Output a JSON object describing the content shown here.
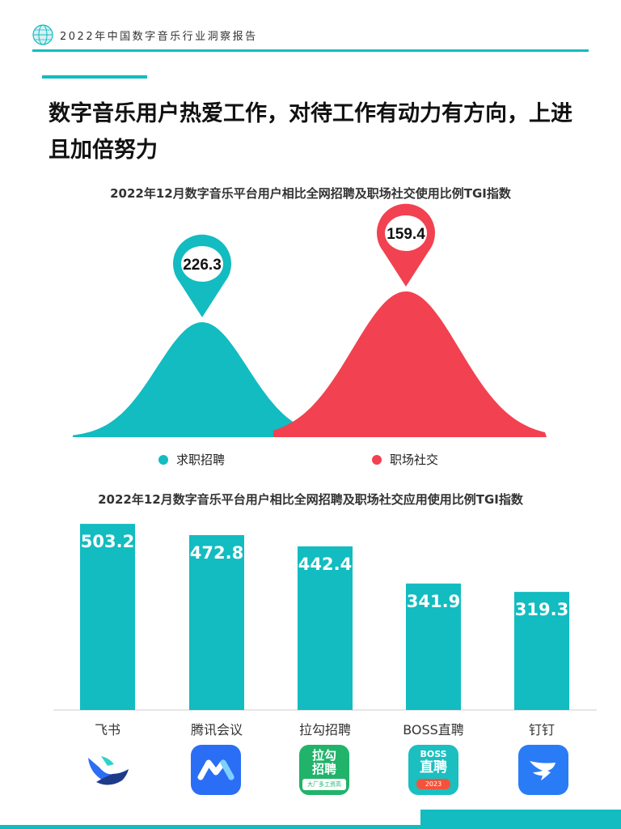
{
  "header": {
    "title": "2022年中国数字音乐行业洞察报告",
    "logo_icon": "globe-logo-icon"
  },
  "main_title": "数字音乐用户热爱工作，对待工作有动力有方向，上进且加倍努力",
  "colors": {
    "accent": "#12bcc0",
    "red": "#f24150",
    "text": "#222222"
  },
  "chart_data": [
    {
      "type": "area",
      "title": "2022年12月数字音乐平台用户相比全网招聘及职场社交使用比例TGI指数",
      "series": [
        {
          "name": "求职招聘",
          "value": 226.3,
          "color": "#12bcc0"
        },
        {
          "name": "职场社交",
          "value": 159.4,
          "color": "#f24150"
        }
      ],
      "legend_position": "bottom"
    },
    {
      "type": "bar",
      "title": "2022年12月数字音乐平台用户相比全网招聘及职场社交应用使用比例TGI指数",
      "categories": [
        "飞书",
        "腾讯会议",
        "拉勾招聘",
        "BOSS直聘",
        "钉钉"
      ],
      "values": [
        503.2,
        472.8,
        442.4,
        341.9,
        319.3
      ],
      "value_labels": [
        "503.2",
        "472.8",
        "442.4",
        "341.9",
        "319.3"
      ],
      "ylim": [
        0,
        580
      ],
      "color": "#12bcc0",
      "app_icons": [
        "feishu-icon",
        "tencent-meeting-icon",
        "lagou-icon",
        "boss-zhipin-icon",
        "dingtalk-icon"
      ],
      "icon_texts": {
        "lagou": [
          "拉勾",
          "招聘",
          "大厂多工资高"
        ],
        "boss": [
          "BOSS",
          "直聘",
          "2023"
        ]
      }
    }
  ]
}
